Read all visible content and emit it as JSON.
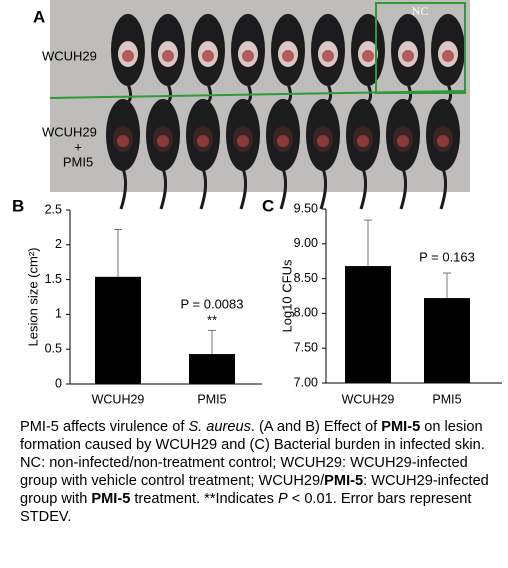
{
  "panel_a": {
    "label": "A",
    "nc_label": "NC",
    "row1_label": "WCUH29",
    "row2_label": [
      "WCUH29",
      "+",
      "PMI5"
    ]
  },
  "chart_data": [
    {
      "type": "bar",
      "panel_label": "B",
      "ylabel": "Lesion size (cm²)",
      "categories": [
        "WCUH29",
        "PMI5"
      ],
      "values": [
        1.54,
        0.43
      ],
      "errors": [
        0.68,
        0.34
      ],
      "color": "#000000",
      "ylim": [
        0,
        2.5
      ],
      "yticks": [
        0,
        0.5,
        1,
        1.5,
        2,
        2.5
      ],
      "grid": false,
      "annotations": [
        "P = 0.0083",
        "**"
      ]
    },
    {
      "type": "bar",
      "panel_label": "C",
      "ylabel": "Log10 CFUs",
      "categories": [
        "WCUH29",
        "PMI5"
      ],
      "values": [
        8.68,
        8.22
      ],
      "errors": [
        0.66,
        0.36
      ],
      "color": "#000000",
      "ylim": [
        7,
        9.5
      ],
      "yticks": [
        {
          "value": 7,
          "label": "7.00"
        },
        {
          "value": 7.5,
          "label": "7.50"
        },
        {
          "value": 8,
          "label": "8.00"
        },
        {
          "value": 8.5,
          "label": "8.50"
        },
        {
          "value": 9,
          "label": "9.00"
        },
        {
          "value": 9.5,
          "label": "9.50"
        }
      ],
      "grid": false,
      "annotations": [
        "P = 0.163"
      ]
    }
  ],
  "caption": {
    "parts": [
      "PMI-5 affects virulence of ",
      "S. aureus",
      ". (A and B) Effect of ",
      "PMI-5",
      " on lesion formation caused by WCUH29 and (C) Bacterial burden in infected skin. NC: non-infected/non-treatment control; WCUH29: WCUH29-infected group with vehicle control treatment; WCUH29/",
      "PMI-5",
      ": WCUH29-infected group with ",
      "PMI-5",
      " treatment. **Indicates ",
      "P",
      " < 0.01. Error bars represent STDEV."
    ]
  }
}
